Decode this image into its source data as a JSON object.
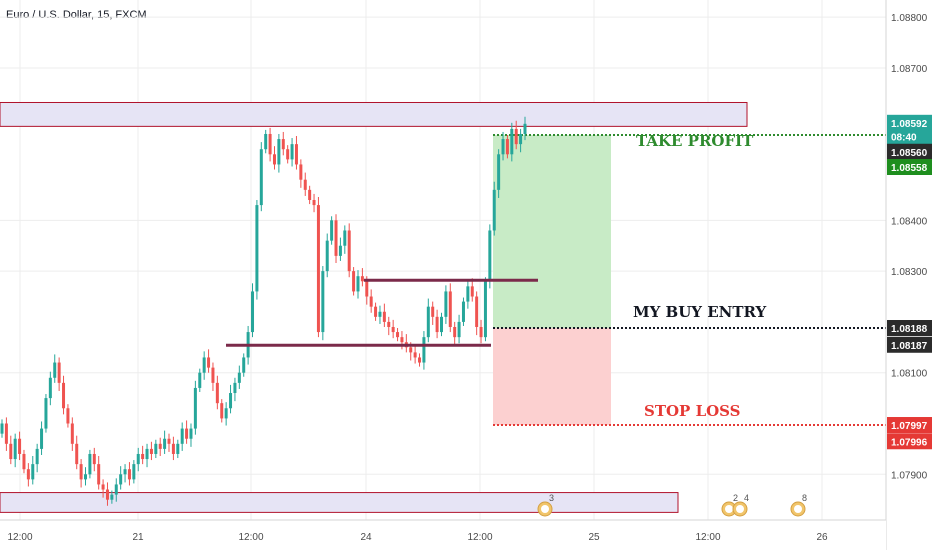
{
  "symbol_title": "Euro / U.S. Dollar, 15, FXCM",
  "colors": {
    "up": "#26a69a",
    "down": "#ef5350",
    "grid": "#ededed",
    "axis_text": "#4a4a4a",
    "zone_fill": "#e6e4f5",
    "zone_border": "#b0122b",
    "entry_line": "#7b2a4a",
    "profit_fill": "#c8ebc6",
    "loss_fill": "#fcd0d0",
    "tp_text": "#2e8b2e",
    "sl_text": "#e53935",
    "entry_text": "#131722",
    "badge_teal": "#26a69a",
    "badge_dark": "#2b2b2b",
    "badge_green": "#1e8e1e",
    "badge_red": "#e53935"
  },
  "chart_data": {
    "type": "candlestick",
    "ylim": [
      1.0781,
      1.0882
    ],
    "price_ticks": [
      "1.08800",
      "1.08700",
      "1.08400",
      "1.08300",
      "1.08100",
      "1.07900"
    ],
    "time_ticks": [
      "12:00",
      "21",
      "12:00",
      "24",
      "12:00",
      "25",
      "12:00",
      "26"
    ],
    "zones": [
      {
        "from": 1.08585,
        "to": 1.08632
      },
      {
        "from": 1.07825,
        "to": 1.07864
      }
    ],
    "entry_lines": [
      {
        "price": 1.08282
      },
      {
        "price": 1.08154
      }
    ],
    "position": {
      "entry": 1.08188,
      "take_profit": 1.0856,
      "stop_loss": 1.07997
    },
    "annotations": {
      "take_profit": "TAKE PROFIT",
      "buy_entry": "MY BUY ENTRY",
      "stop_loss": "STOP LOSS"
    },
    "price_badges": [
      {
        "text": "1.08592",
        "price": 1.08592,
        "kind": "teal"
      },
      {
        "text": "08:40",
        "price": 1.08565,
        "kind": "teal"
      },
      {
        "text": "1.08560",
        "price": 1.08535,
        "kind": "dark"
      },
      {
        "text": "1.08558",
        "price": 1.08505,
        "kind": "green"
      },
      {
        "text": "1.08188",
        "price": 1.08188,
        "kind": "dark"
      },
      {
        "text": "1.08187",
        "price": 1.08155,
        "kind": "dark"
      },
      {
        "text": "1.07997",
        "price": 1.07997,
        "kind": "red"
      },
      {
        "text": "1.07996",
        "price": 1.07965,
        "kind": "red"
      }
    ],
    "event_markers": [
      {
        "label": "3"
      },
      {
        "label": "2"
      },
      {
        "label": "4"
      },
      {
        "label": "8"
      }
    ],
    "closes": [
      1.08,
      1.0796,
      1.0793,
      1.0797,
      1.0794,
      1.0791,
      1.0789,
      1.0792,
      1.0795,
      1.0799,
      1.0805,
      1.0809,
      1.0812,
      1.0808,
      1.0803,
      1.08,
      1.0796,
      1.0792,
      1.0789,
      1.079,
      1.0794,
      1.0792,
      1.0788,
      1.0787,
      1.0785,
      1.0786,
      1.0788,
      1.079,
      1.0791,
      1.0789,
      1.0792,
      1.0794,
      1.0793,
      1.0795,
      1.0794,
      1.0796,
      1.0795,
      1.0797,
      1.0796,
      1.0794,
      1.0796,
      1.0799,
      1.0797,
      1.0799,
      1.0807,
      1.081,
      1.0813,
      1.0811,
      1.0808,
      1.0804,
      1.0801,
      1.0803,
      1.0806,
      1.0808,
      1.081,
      1.0813,
      1.0818,
      1.0826,
      1.0843,
      1.0854,
      1.0857,
      1.0853,
      1.0851,
      1.0856,
      1.0854,
      1.0852,
      1.0855,
      1.0851,
      1.0848,
      1.0846,
      1.0844,
      1.0843,
      1.0818,
      1.083,
      1.0836,
      1.084,
      1.0833,
      1.0835,
      1.0838,
      1.083,
      1.0826,
      1.0829,
      1.0828,
      1.0825,
      1.0823,
      1.0821,
      1.0822,
      1.082,
      1.0819,
      1.0818,
      1.0817,
      1.0816,
      1.0815,
      1.0814,
      1.0813,
      1.0812,
      1.0817,
      1.0823,
      1.0821,
      1.0818,
      1.0821,
      1.0826,
      1.0819,
      1.0817,
      1.082,
      1.0824,
      1.0827,
      1.0825,
      1.0819,
      1.0817,
      1.0828,
      1.0838,
      1.0846,
      1.0853,
      1.0856,
      1.0853,
      1.0858,
      1.0855,
      1.0857,
      1.0859
    ]
  }
}
